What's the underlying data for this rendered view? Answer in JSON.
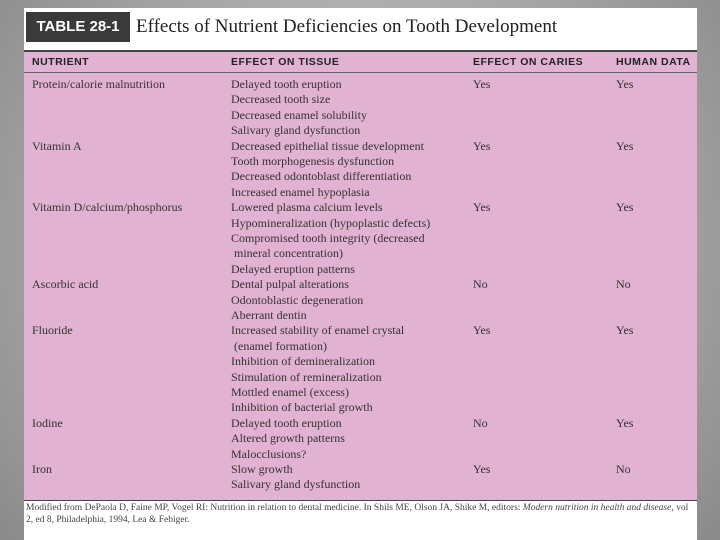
{
  "header": {
    "label": "TABLE 28-1",
    "title": "Effects of Nutrient Deficiencies on Tooth Development"
  },
  "table": {
    "columns": [
      "NUTRIENT",
      "EFFECT ON TISSUE",
      "EFFECT ON CARIES",
      "HUMAN DATA"
    ],
    "rows": [
      {
        "nutrient": "Protein/calorie malnutrition",
        "effects": [
          "Delayed tooth eruption",
          "Decreased tooth size",
          "Decreased enamel solubility",
          "Salivary gland dysfunction"
        ],
        "caries": "Yes",
        "human": "Yes"
      },
      {
        "nutrient": "Vitamin A",
        "effects": [
          "Decreased epithelial tissue development",
          "Tooth morphogenesis dysfunction",
          "Decreased odontoblast differentiation",
          "Increased enamel hypoplasia"
        ],
        "caries": "Yes",
        "human": "Yes"
      },
      {
        "nutrient": "Vitamin D/calcium/phosphorus",
        "effects": [
          "Lowered plasma calcium levels",
          "Hypomineralization (hypoplastic defects)",
          "Compromised tooth integrity (decreased",
          "mineral concentration)",
          "Delayed eruption patterns"
        ],
        "caries": "Yes",
        "human": "Yes"
      },
      {
        "nutrient": "Ascorbic acid",
        "effects": [
          "Dental pulpal alterations",
          "Odontoblastic degeneration",
          "Aberrant dentin"
        ],
        "caries": "No",
        "human": "No"
      },
      {
        "nutrient": "Fluoride",
        "effects": [
          "Increased stability of enamel crystal",
          "(enamel formation)",
          "Inhibition of demineralization",
          "Stimulation of remineralization",
          "Mottled enamel (excess)",
          "Inhibition of bacterial growth"
        ],
        "caries": "Yes",
        "human": "Yes"
      },
      {
        "nutrient": "Iodine",
        "effects": [
          "Delayed tooth eruption",
          "Altered growth patterns",
          "Malocclusions?"
        ],
        "caries": "No",
        "human": "Yes"
      },
      {
        "nutrient": "Iron",
        "effects": [
          "Slow growth",
          "Salivary gland dysfunction"
        ],
        "caries": "Yes",
        "human": "No"
      }
    ]
  },
  "footnote": {
    "parts": [
      "Modified from DePaola D, Faine MP, Vogel RI: Nutrition in relation to dental medicine. In Shils ME, Olson JA, Shike M, editors: ",
      "Modern nutrition in health and disease",
      ", vol 2, ed 8, Philadelphia, 1994, Lea & Febiger."
    ]
  }
}
